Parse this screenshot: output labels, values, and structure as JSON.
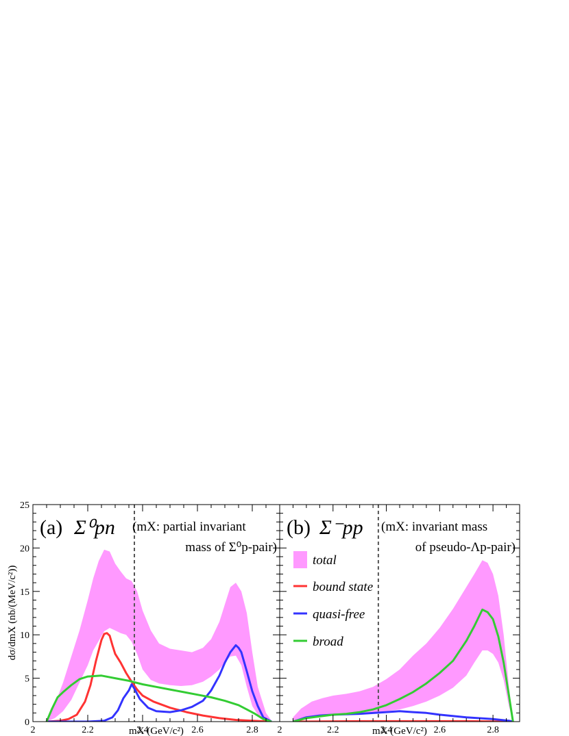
{
  "chart_data": [
    {
      "type": "area",
      "panel_label": "(a)",
      "channel": "Σ⁰pn",
      "note_lines": [
        "(mX: partial invariant",
        "mass of Σ⁰p-pair)"
      ],
      "xlabel": "mX (GeV/c²)",
      "ylabel": "dσ/dmX (nb/(MeV/c²))",
      "xlim": [
        2.0,
        2.9
      ],
      "ylim": [
        0,
        25
      ],
      "x_ticks": [
        "2",
        "2.2",
        "2.4",
        "2.6",
        "2.8"
      ],
      "y_ticks": [
        "0",
        "5",
        "10",
        "15",
        "20",
        "25"
      ],
      "threshold_line_x": 2.37,
      "band": {
        "name": "total",
        "color": "#ff99ff",
        "x": [
          2.05,
          2.08,
          2.11,
          2.14,
          2.17,
          2.2,
          2.22,
          2.24,
          2.26,
          2.28,
          2.3,
          2.32,
          2.34,
          2.36,
          2.38,
          2.4,
          2.43,
          2.46,
          2.5,
          2.54,
          2.58,
          2.62,
          2.65,
          2.68,
          2.7,
          2.72,
          2.74,
          2.76,
          2.78,
          2.8,
          2.82,
          2.85,
          2.87
        ],
        "upper": [
          0.2,
          2.0,
          4.5,
          7.5,
          10.5,
          14.0,
          16.5,
          18.5,
          19.8,
          19.6,
          18.2,
          17.3,
          16.5,
          16.2,
          15.0,
          12.8,
          10.5,
          9.0,
          8.4,
          8.2,
          8.0,
          8.5,
          9.5,
          11.5,
          13.5,
          15.5,
          16.0,
          15.0,
          12.5,
          8.0,
          4.0,
          1.0,
          0.1
        ],
        "lower": [
          0.0,
          0.4,
          1.2,
          2.5,
          4.5,
          6.5,
          8.2,
          9.3,
          10.4,
          10.8,
          10.5,
          10.2,
          10.0,
          9.2,
          7.8,
          6.0,
          4.8,
          4.4,
          4.2,
          4.1,
          4.2,
          4.6,
          5.2,
          6.0,
          6.8,
          7.5,
          7.6,
          6.5,
          4.0,
          1.8,
          0.8,
          0.2,
          0.0
        ]
      },
      "series": [
        {
          "name": "bound state",
          "color": "#ff3333",
          "x": [
            2.05,
            2.1,
            2.13,
            2.16,
            2.19,
            2.21,
            2.23,
            2.25,
            2.26,
            2.27,
            2.28,
            2.29,
            2.3,
            2.32,
            2.34,
            2.36,
            2.38,
            2.4,
            2.44,
            2.5,
            2.56,
            2.62,
            2.68,
            2.74,
            2.8,
            2.87
          ],
          "y": [
            0.0,
            0.1,
            0.3,
            0.8,
            2.3,
            4.2,
            7.0,
            9.4,
            10.1,
            10.2,
            9.9,
            8.8,
            7.8,
            6.8,
            5.6,
            4.6,
            3.7,
            3.0,
            2.3,
            1.6,
            1.1,
            0.7,
            0.4,
            0.2,
            0.1,
            0.0
          ]
        },
        {
          "name": "quasi-free",
          "color": "#3333ff",
          "x": [
            2.05,
            2.2,
            2.26,
            2.29,
            2.31,
            2.33,
            2.35,
            2.36,
            2.37,
            2.39,
            2.42,
            2.45,
            2.5,
            2.54,
            2.58,
            2.62,
            2.65,
            2.68,
            2.7,
            2.72,
            2.74,
            2.75,
            2.76,
            2.78,
            2.8,
            2.82,
            2.84,
            2.87
          ],
          "y": [
            0.0,
            0.0,
            0.1,
            0.5,
            1.3,
            2.7,
            3.6,
            4.3,
            3.8,
            2.6,
            1.6,
            1.2,
            1.1,
            1.3,
            1.7,
            2.4,
            3.6,
            5.3,
            6.8,
            8.0,
            8.8,
            8.5,
            8.0,
            5.8,
            3.5,
            1.8,
            0.5,
            0.0
          ]
        },
        {
          "name": "broad",
          "color": "#33cc33",
          "x": [
            2.05,
            2.07,
            2.09,
            2.11,
            2.14,
            2.17,
            2.2,
            2.25,
            2.3,
            2.35,
            2.4,
            2.45,
            2.5,
            2.55,
            2.6,
            2.65,
            2.7,
            2.75,
            2.78,
            2.81,
            2.84,
            2.87
          ],
          "y": [
            0.0,
            1.5,
            2.8,
            3.4,
            4.2,
            4.9,
            5.2,
            5.3,
            5.0,
            4.7,
            4.3,
            4.0,
            3.7,
            3.4,
            3.1,
            2.8,
            2.4,
            1.9,
            1.4,
            0.9,
            0.3,
            0.0
          ]
        }
      ]
    },
    {
      "type": "area",
      "panel_label": "(b)",
      "channel": "Σ⁻pp",
      "note_lines": [
        "(mX: invariant mass",
        "of pseudo-Λp-pair)"
      ],
      "xlabel": "mX (GeV/c²)",
      "xlim": [
        2.0,
        2.9
      ],
      "ylim": [
        0,
        25
      ],
      "x_ticks": [
        "2",
        "2.2",
        "2.4",
        "2.6",
        "2.8"
      ],
      "threshold_line_x": 2.37,
      "legend": [
        {
          "label": "total",
          "kind": "band",
          "color": "#ff99ff"
        },
        {
          "label": "bound state",
          "kind": "line",
          "color": "#ff3333"
        },
        {
          "label": "quasi-free",
          "kind": "line",
          "color": "#3333ff"
        },
        {
          "label": "broad",
          "kind": "line",
          "color": "#33cc33"
        }
      ],
      "band": {
        "name": "total",
        "color": "#ff99ff",
        "x": [
          2.05,
          2.08,
          2.12,
          2.16,
          2.2,
          2.25,
          2.3,
          2.35,
          2.4,
          2.45,
          2.5,
          2.55,
          2.6,
          2.65,
          2.7,
          2.73,
          2.76,
          2.78,
          2.8,
          2.82,
          2.84,
          2.86,
          2.875
        ],
        "upper": [
          0.5,
          1.5,
          2.3,
          2.7,
          3.0,
          3.2,
          3.5,
          4.0,
          4.9,
          6.0,
          7.6,
          9.0,
          10.8,
          13.0,
          15.5,
          17.0,
          18.6,
          18.3,
          17.0,
          14.5,
          10.0,
          4.0,
          0.2
        ],
        "lower": [
          0.0,
          0.2,
          0.4,
          0.6,
          0.7,
          0.8,
          0.9,
          1.0,
          1.2,
          1.4,
          1.8,
          2.3,
          3.0,
          3.9,
          5.3,
          6.8,
          8.2,
          8.2,
          7.8,
          6.8,
          4.8,
          1.8,
          0.0
        ]
      },
      "series": [
        {
          "name": "bound state",
          "color": "#ff3333",
          "x": [
            2.05,
            2.3,
            2.5,
            2.7,
            2.875
          ],
          "y": [
            0.0,
            0.05,
            0.05,
            0.05,
            0.0
          ]
        },
        {
          "name": "quasi-free",
          "color": "#3333ff",
          "x": [
            2.05,
            2.1,
            2.15,
            2.2,
            2.3,
            2.4,
            2.45,
            2.5,
            2.55,
            2.6,
            2.7,
            2.8,
            2.86,
            2.875
          ],
          "y": [
            0.0,
            0.5,
            0.7,
            0.8,
            0.9,
            1.1,
            1.2,
            1.1,
            1.0,
            0.8,
            0.5,
            0.3,
            0.1,
            0.0
          ]
        },
        {
          "name": "broad",
          "color": "#33cc33",
          "x": [
            2.05,
            2.1,
            2.15,
            2.2,
            2.25,
            2.3,
            2.35,
            2.4,
            2.45,
            2.5,
            2.55,
            2.6,
            2.65,
            2.7,
            2.73,
            2.76,
            2.78,
            2.8,
            2.82,
            2.84,
            2.86,
            2.875
          ],
          "y": [
            0.0,
            0.4,
            0.6,
            0.8,
            0.9,
            1.1,
            1.4,
            1.9,
            2.6,
            3.4,
            4.4,
            5.6,
            7.0,
            9.3,
            11.0,
            12.9,
            12.6,
            11.8,
            9.8,
            6.8,
            3.0,
            0.0
          ]
        }
      ]
    }
  ]
}
